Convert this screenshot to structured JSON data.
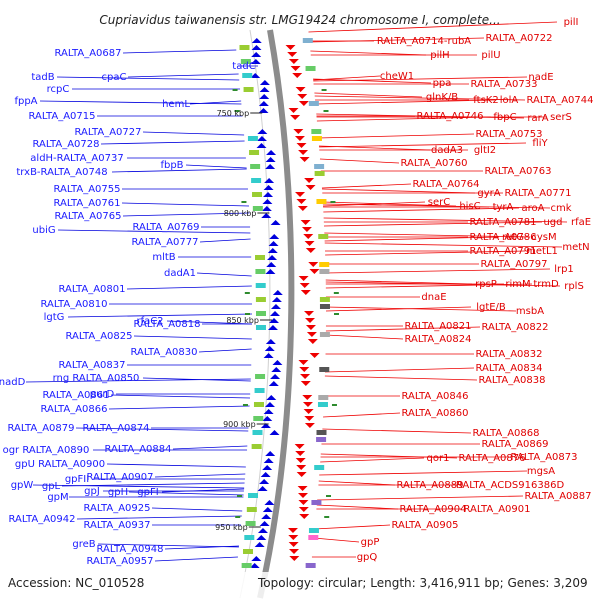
{
  "title": "Cupriavidus taiwanensis str. LMG19424 chromosome I, complete...",
  "footer": {
    "accession": "Accession: NC_010528",
    "summary": "Topology: circular; Length: 3,416,911 bp; Genes: 3,209"
  },
  "colors": {
    "forward": "#0000dd",
    "reverse": "#ee0000",
    "label_left": "#1a1aff",
    "label_right": "#e00000",
    "backbone": "#8c8c8c",
    "tick": "#2e8b2e"
  },
  "ticks": [
    {
      "label": "750 kbp"
    },
    {
      "label": "800 kbp"
    },
    {
      "label": "850 kbp"
    },
    {
      "label": "900 kbp"
    },
    {
      "label": "950 kbp"
    }
  ],
  "left_labels": [
    {
      "text": "RALTA_A0687"
    },
    {
      "text": "tadC"
    },
    {
      "text": "tadB"
    },
    {
      "text": "cpaC"
    },
    {
      "text": "rcpC"
    },
    {
      "text": "fppA"
    },
    {
      "text": "hemL"
    },
    {
      "text": "RALTA_A0715"
    },
    {
      "text": "RALTA_A0727"
    },
    {
      "text": "RALTA_A0728"
    },
    {
      "text": "aldH-RALTA_A0737"
    },
    {
      "text": "fbpB"
    },
    {
      "text": "trxB-RALTA_A0748"
    },
    {
      "text": "RALTA_A0755"
    },
    {
      "text": "RALTA_A0761"
    },
    {
      "text": "RALTA_A0765"
    },
    {
      "text": "RALTA_A0769"
    },
    {
      "text": "ubiG"
    },
    {
      "text": "RALTA_A0777"
    },
    {
      "text": "mltB"
    },
    {
      "text": "dadA1"
    },
    {
      "text": "RALTA_A0801"
    },
    {
      "text": "RALTA_A0810"
    },
    {
      "text": "rfaC2"
    },
    {
      "text": "lgtG"
    },
    {
      "text": "RALTA_A0818"
    },
    {
      "text": "RALTA_A0825"
    },
    {
      "text": "RALTA_A0830"
    },
    {
      "text": "RALTA_A0837"
    },
    {
      "text": "rng RALTA_A0850"
    },
    {
      "text": "nadD"
    },
    {
      "text": "purD"
    },
    {
      "text": "RALTA_A0861"
    },
    {
      "text": "RALTA_A0866"
    },
    {
      "text": "RALTA_A0874"
    },
    {
      "text": "RALTA_A0879"
    },
    {
      "text": "RALTA_A0884"
    },
    {
      "text": "ogr RALTA_A0890"
    },
    {
      "text": "gpU RALTA_A0900"
    },
    {
      "text": "RALTA_A0907"
    },
    {
      "text": "gpFII"
    },
    {
      "text": "gpW"
    },
    {
      "text": "gpL"
    },
    {
      "text": "gpJ"
    },
    {
      "text": "gpH"
    },
    {
      "text": "gpFI"
    },
    {
      "text": "gpM"
    },
    {
      "text": "RALTA_A0925"
    },
    {
      "text": "RALTA_A0942"
    },
    {
      "text": "RALTA_A0937"
    },
    {
      "text": "greB"
    },
    {
      "text": "RALTA_A0948"
    },
    {
      "text": "RALTA_A0957"
    }
  ],
  "right_labels": [
    {
      "text": "pilI"
    },
    {
      "text": "RALTA_A0714-rubA"
    },
    {
      "text": "RALTA_A0722"
    },
    {
      "text": "pilH"
    },
    {
      "text": "pilU"
    },
    {
      "text": "cheW1"
    },
    {
      "text": "ppa"
    },
    {
      "text": "RALTA_A0733"
    },
    {
      "text": "nadE"
    },
    {
      "text": "glnK/B"
    },
    {
      "text": "ftsK2"
    },
    {
      "text": "lolA"
    },
    {
      "text": "RALTA_A0744"
    },
    {
      "text": "RALTA_A0746"
    },
    {
      "text": "fbpC"
    },
    {
      "text": "rarA"
    },
    {
      "text": "serS"
    },
    {
      "text": "RALTA_A0753"
    },
    {
      "text": "dadA3"
    },
    {
      "text": "gltI2"
    },
    {
      "text": "fliY"
    },
    {
      "text": "RALTA_A0760"
    },
    {
      "text": "RALTA_A0763"
    },
    {
      "text": "RALTA_A0764"
    },
    {
      "text": "gyrA"
    },
    {
      "text": "RALTA_A0771"
    },
    {
      "text": "serC"
    },
    {
      "text": "hisC"
    },
    {
      "text": "tyrA"
    },
    {
      "text": "aroA"
    },
    {
      "text": "cmk"
    },
    {
      "text": "RALTA_A0781"
    },
    {
      "text": "ugd"
    },
    {
      "text": "rfaE"
    },
    {
      "text": "RALTA_A0786"
    },
    {
      "text": "rutG"
    },
    {
      "text": "cysM"
    },
    {
      "text": "RALTA_A0791"
    },
    {
      "text": "metL1"
    },
    {
      "text": "metN"
    },
    {
      "text": "RALTA_A0797"
    },
    {
      "text": "lrp1"
    },
    {
      "text": "rpsP"
    },
    {
      "text": "rimM"
    },
    {
      "text": "trmD"
    },
    {
      "text": "rplS"
    },
    {
      "text": "dnaE"
    },
    {
      "text": "lgtE/B"
    },
    {
      "text": "msbA"
    },
    {
      "text": "RALTA_A0821"
    },
    {
      "text": "RALTA_A0822"
    },
    {
      "text": "RALTA_A0824"
    },
    {
      "text": "RALTA_A0832"
    },
    {
      "text": "RALTA_A0834"
    },
    {
      "text": "RALTA_A0838"
    },
    {
      "text": "RALTA_A0846"
    },
    {
      "text": "RALTA_A0860"
    },
    {
      "text": "RALTA_A0868"
    },
    {
      "text": "RALTA_A0869"
    },
    {
      "text": "qor1"
    },
    {
      "text": "RALTA_A0876"
    },
    {
      "text": "RALTA_A0873"
    },
    {
      "text": "mgsA"
    },
    {
      "text": "RALTA_A0889"
    },
    {
      "text": "RALTA_ACDS916386D"
    },
    {
      "text": "RALTA_A0887"
    },
    {
      "text": "RALTA_A0904"
    },
    {
      "text": "RALTA_A0901"
    },
    {
      "text": "RALTA_A0905"
    },
    {
      "text": "gpP"
    },
    {
      "text": "gpQ"
    }
  ]
}
